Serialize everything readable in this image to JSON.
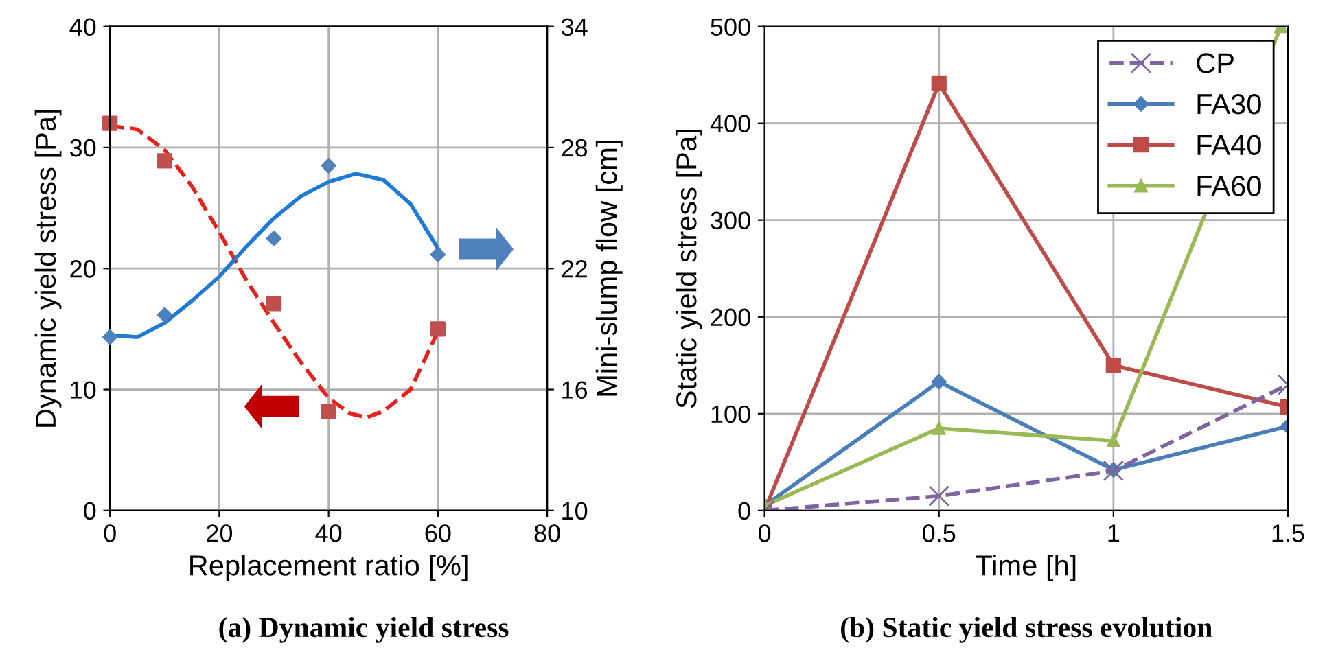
{
  "chart_data": [
    {
      "type": "scatter",
      "title": "(a) Dynamic yield stress",
      "xlabel": "Replacement ratio [%]",
      "ylabel": "Dynamic yield stress [Pa]",
      "y2label": "Mini-slump flow [cm]",
      "x": [
        0,
        10,
        30,
        40,
        60
      ],
      "series": [
        {
          "type": "scatter",
          "color": "#c0504d",
          "marker": "square",
          "values": [
            32.0,
            28.9,
            17.1,
            8.2,
            15.0
          ]
        },
        {
          "type": "scatter",
          "color": "#4f81bd",
          "marker": "diamond",
          "axis": "y2",
          "values": [
            18.6,
            19.7,
            23.5,
            27.1,
            22.7
          ]
        },
        {
          "type": "line",
          "color": "#e8201a",
          "line_style": "dashed",
          "marker": "none",
          "x": [
            0,
            5,
            10,
            15,
            20,
            25,
            30,
            35,
            40,
            44,
            47,
            50,
            55,
            60
          ],
          "values": [
            31.8,
            31.5,
            29.8,
            26.8,
            23.0,
            19.0,
            15.5,
            12.2,
            9.3,
            8.0,
            7.7,
            8.2,
            10.0,
            14.8
          ]
        },
        {
          "type": "line",
          "color": "#1f7ad4",
          "line_style": "solid",
          "marker": "none",
          "axis": "y2",
          "x": [
            0,
            5,
            10,
            15,
            20,
            25,
            30,
            35,
            40,
            45,
            50,
            55,
            60
          ],
          "values": [
            18.7,
            18.6,
            19.3,
            20.4,
            21.6,
            23.1,
            24.5,
            25.6,
            26.3,
            26.7,
            26.4,
            25.2,
            23.0
          ]
        }
      ],
      "xlim": [
        0,
        80
      ],
      "xticks": [
        0,
        20,
        40,
        60,
        80
      ],
      "ylim": [
        0,
        40
      ],
      "yticks": [
        0,
        10,
        20,
        30,
        40
      ],
      "y2lim": [
        10,
        34
      ],
      "y2ticks": [
        10,
        16,
        22,
        28,
        34
      ],
      "grid": true,
      "legend": false
    },
    {
      "type": "line",
      "title": "(b) Static yield stress evolution",
      "xlabel": "Time [h]",
      "ylabel": "Static yield stress [Pa]",
      "x": [
        0,
        0.5,
        1,
        1.5
      ],
      "series": [
        {
          "name": "CP",
          "color": "#8064a2",
          "marker": "cross",
          "line_style": "dashed",
          "values": [
            0,
            15,
            41,
            130
          ]
        },
        {
          "name": "FA30",
          "color": "#4a7ebb",
          "marker": "diamond",
          "line_style": "solid",
          "values": [
            5,
            133,
            42,
            87
          ]
        },
        {
          "name": "FA40",
          "color": "#be4b48",
          "marker": "square",
          "line_style": "solid",
          "values": [
            0,
            441,
            150,
            107
          ]
        },
        {
          "name": "FA60",
          "color": "#98b954",
          "marker": "triangle",
          "line_style": "solid",
          "x": [
            0,
            0.5,
            1,
            1.48
          ],
          "values": [
            5,
            85,
            72,
            500
          ]
        }
      ],
      "xlim": [
        0,
        1.5
      ],
      "xticks": [
        0,
        0.5,
        1,
        1.5
      ],
      "ylim": [
        0,
        500
      ],
      "yticks": [
        0,
        100,
        200,
        300,
        400,
        500
      ],
      "grid": true,
      "legend": "top right"
    }
  ]
}
